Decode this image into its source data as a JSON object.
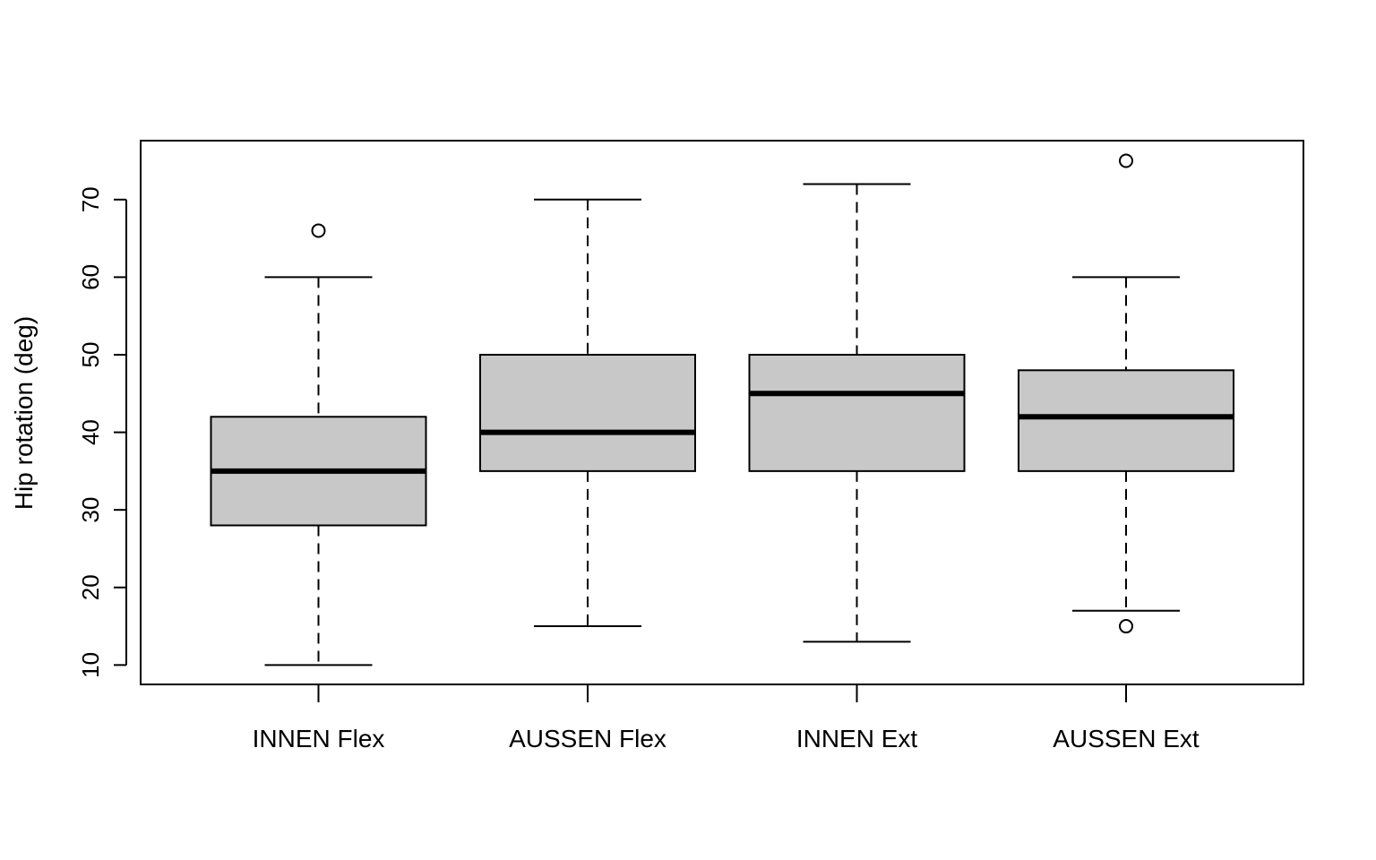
{
  "chart_data": {
    "type": "boxplot",
    "title": "",
    "xlabel": "",
    "ylabel": "Hip rotation (deg)",
    "ylim": [
      7.5,
      77.6
    ],
    "yticks": [
      10,
      20,
      30,
      40,
      50,
      60,
      70
    ],
    "grid": false,
    "categories": [
      "INNEN Flex",
      "AUSSEN Flex",
      "INNEN Ext",
      "AUSSEN Ext"
    ],
    "boxes": [
      {
        "whisker_low": 10,
        "q1": 28,
        "median": 35,
        "q3": 42,
        "whisker_high": 60,
        "outliers": [
          66
        ]
      },
      {
        "whisker_low": 15,
        "q1": 35,
        "median": 40,
        "q3": 50,
        "whisker_high": 70,
        "outliers": []
      },
      {
        "whisker_low": 13,
        "q1": 35,
        "median": 45,
        "q3": 50,
        "whisker_high": 72,
        "outliers": []
      },
      {
        "whisker_low": 17,
        "q1": 35,
        "median": 42,
        "q3": 48,
        "whisker_high": 60,
        "outliers": [
          75,
          15
        ]
      }
    ],
    "box_fill": "#c8c8c8",
    "line_color": "#000000"
  }
}
